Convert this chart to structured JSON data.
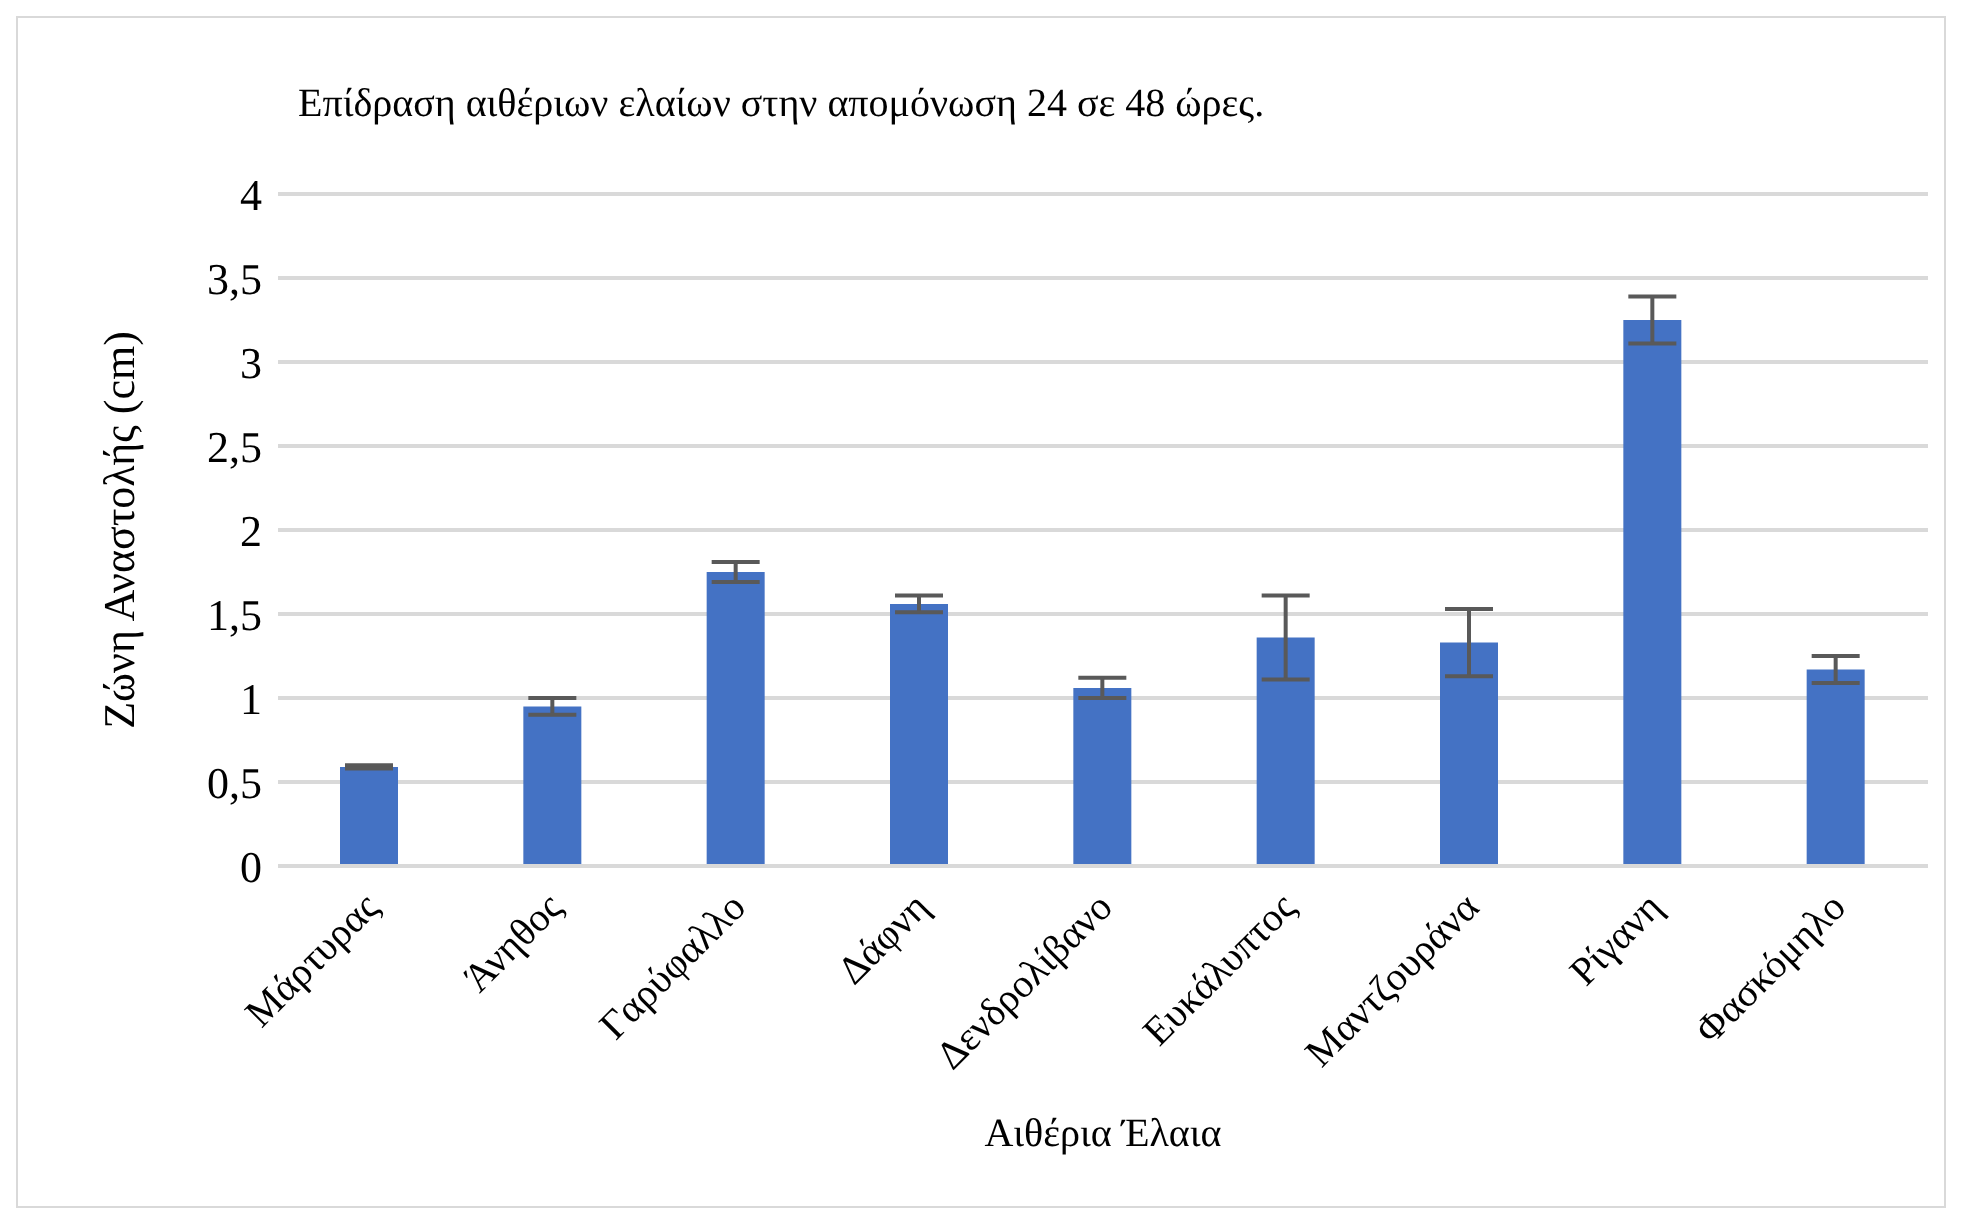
{
  "chart_data": {
    "type": "bar",
    "title": "Επίδραση αιθέριων ελαίων στην απομόνωση 24 σε 48 ώρες.",
    "xlabel": "Αιθέρια Έλαια",
    "ylabel": "Ζώνη Αναστολής (cm)",
    "categories": [
      "Μάρτυρας",
      "Άνηθος",
      "Γαρύφαλλο",
      "Δάφνη",
      "Δενδρολίβανο",
      "Ευκάλυπτος",
      "Μαντζουράνα",
      "Ρίγανη",
      "Φασκόμηλο"
    ],
    "values": [
      0.59,
      0.95,
      1.75,
      1.56,
      1.06,
      1.36,
      1.33,
      3.25,
      1.17
    ],
    "errors": [
      0.01,
      0.05,
      0.06,
      0.05,
      0.06,
      0.25,
      0.2,
      0.14,
      0.08
    ],
    "color": "#4472c4",
    "ylim": [
      0,
      4
    ],
    "yticks": [
      0,
      {
        "value": 0.5,
        "label": "0,5"
      },
      1,
      {
        "value": 1.5,
        "label": "1,5"
      },
      2,
      {
        "value": 2.5,
        "label": "2,5"
      },
      3,
      {
        "value": 3.5,
        "label": "3,5"
      },
      4
    ],
    "grid": "y",
    "legend": false
  }
}
